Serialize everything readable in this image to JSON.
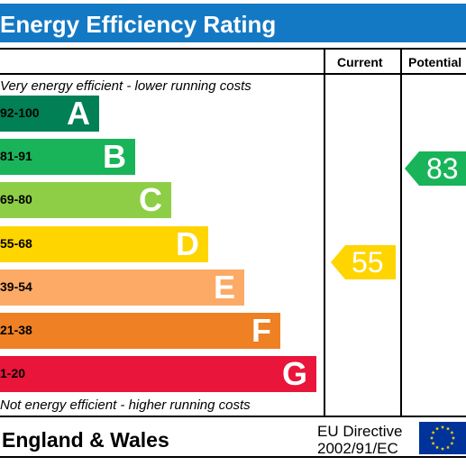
{
  "chart_data": {
    "type": "bar",
    "title": "Energy Efficiency Rating",
    "columns": {
      "current": "Current",
      "potential": "Potential"
    },
    "top_note": "Very energy efficient - lower running costs",
    "bottom_note": "Not energy efficient - higher running costs",
    "bands": [
      {
        "range": "92-100",
        "letter": "A",
        "color": "#008054",
        "range_color": "#000000"
      },
      {
        "range": "81-91",
        "letter": "B",
        "color": "#19b459",
        "range_color": "#000000"
      },
      {
        "range": "69-80",
        "letter": "C",
        "color": "#8dce46",
        "range_color": "#000000"
      },
      {
        "range": "55-68",
        "letter": "D",
        "color": "#ffd500",
        "range_color": "#000000"
      },
      {
        "range": "39-54",
        "letter": "E",
        "color": "#fcaa65",
        "range_color": "#000000"
      },
      {
        "range": "21-38",
        "letter": "F",
        "color": "#ef8023",
        "range_color": "#000000"
      },
      {
        "range": "1-20",
        "letter": "G",
        "color": "#e9153b",
        "range_color": "#000000"
      }
    ],
    "current": {
      "value": 55,
      "band": "D",
      "color": "#ffd500"
    },
    "potential": {
      "value": 83,
      "band": "B",
      "color": "#19b459"
    }
  },
  "footer": {
    "region": "England & Wales",
    "directive_line1": "EU Directive",
    "directive_line2": "2002/91/EC"
  },
  "colors": {
    "header": "#1479c4",
    "eu_flag": "#003399",
    "eu_stars": "#ffdd00"
  },
  "icons": {
    "flag": "eu-flag-icon"
  }
}
